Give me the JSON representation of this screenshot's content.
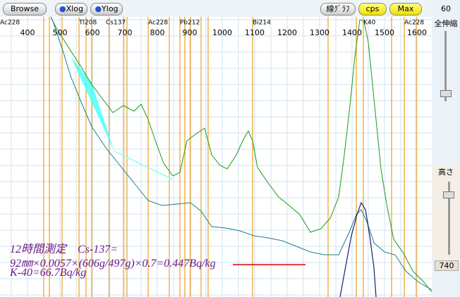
{
  "toolbar": {
    "buttons": [
      "Browse",
      "Xlog",
      "Ylog",
      "線ｸﾞﾗﾌ",
      "cps",
      "Max"
    ]
  },
  "x_axis": {
    "ticks": [
      "400",
      "500",
      "600",
      "700",
      "800",
      "900",
      "1000",
      "1100",
      "1200",
      "1300",
      "1400",
      "1500",
      "1600"
    ]
  },
  "peak_labels": [
    "Ac228",
    "Tl208",
    "Cs137",
    "Ac228",
    "Pb212",
    "Bi214",
    "K40",
    "Ac228"
  ],
  "annotation": {
    "line1": "12時間測定　Cs-137=",
    "line2": "92㎜×0.0057×(606g/497g)×0.7=",
    "result": "0.447Bq/kg",
    "line3": "K-40=66.7Bq/kg"
  },
  "side_panel": {
    "top_value": "60",
    "zoom_label": "全伸縮",
    "height_label": "高さ",
    "bottom_value": "740"
  }
}
